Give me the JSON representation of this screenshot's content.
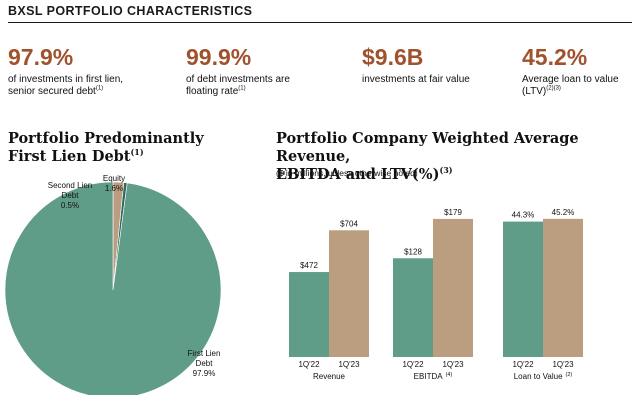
{
  "page_title": "BXSL PORTFOLIO CHARACTERISTICS",
  "stats": [
    {
      "value": "97.9%",
      "desc": "of investments in first lien, senior secured debt",
      "note": "(1)"
    },
    {
      "value": "99.9%",
      "desc": "of debt investments are floating rate",
      "note": "(1)"
    },
    {
      "value": "$9.6B",
      "desc": "investments at fair value",
      "note": ""
    },
    {
      "value": "45.2%",
      "desc": "Average loan to value (LTV)",
      "note": "(2)(3)"
    }
  ],
  "left_heading": {
    "line1": "Portfolio Predominantly",
    "line2": "First Lien Debt",
    "note": "(1)"
  },
  "right_heading": {
    "line1": "Portfolio Company Weighted Average Revenue,",
    "line2": "EBITDA and LTV(%)",
    "note": "(3)"
  },
  "subtitle": "($ in millions, unless otherwise noted)",
  "colors": {
    "green": "#5f9d88",
    "tan": "#bb9e7f",
    "dark": "#2e6a62",
    "accent": "#a0522d"
  },
  "chart_data": [
    {
      "type": "pie",
      "title": "Portfolio Predominantly First Lien Debt",
      "slices": [
        {
          "name": "First Lien Debt",
          "value": 97.9,
          "label_line1": "First Lien",
          "label_line2": "Debt",
          "label_value": "97.9%",
          "color": "#5f9d88"
        },
        {
          "name": "Second Lien Debt",
          "value": 0.5,
          "label_line1": "Second Lien",
          "label_line2": "Debt",
          "label_value": "0.5%",
          "color": "#2e6a62"
        },
        {
          "name": "Equity",
          "value": 1.6,
          "label_line1": "Equity",
          "label_line2": "",
          "label_value": "1.6%",
          "color": "#bb9e7f"
        }
      ]
    },
    {
      "type": "bar",
      "title": "Revenue",
      "title_note": "",
      "categories": [
        "1Q'22",
        "1Q'23"
      ],
      "values": [
        472,
        704
      ],
      "labels": [
        "$472",
        "$704"
      ],
      "ylim": [
        0,
        900
      ]
    },
    {
      "type": "bar",
      "title": "EBITDA",
      "title_note": "(4)",
      "categories": [
        "1Q'22",
        "1Q'23"
      ],
      "values": [
        128,
        179
      ],
      "labels": [
        "$128",
        "$179"
      ],
      "ylim": [
        0,
        210
      ]
    },
    {
      "type": "bar",
      "title": "Loan to Value",
      "title_note": "(2)",
      "categories": [
        "1Q'22",
        "1Q'23"
      ],
      "values": [
        44.3,
        45.2
      ],
      "labels": [
        "44.3%",
        "45.2%"
      ],
      "ylim": [
        0,
        53
      ]
    }
  ]
}
